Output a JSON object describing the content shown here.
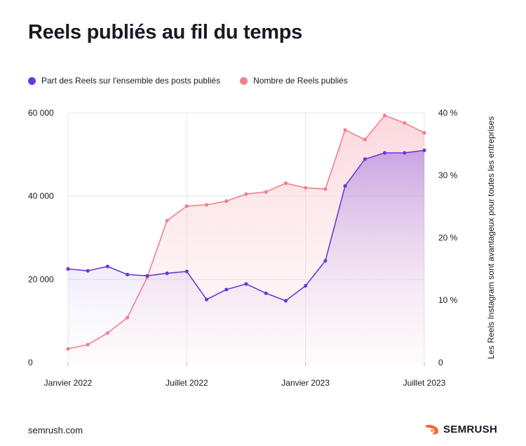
{
  "title": "Reels publiés au fil du temps",
  "footer": {
    "source": "semrush.com",
    "brand": "SEMRUSH"
  },
  "colors": {
    "purple": "#6a3ad6",
    "pink": "#f0808e",
    "grid": "#e6e6ea",
    "text": "#171a22"
  },
  "chart_data": {
    "type": "line",
    "title": "Reels publiés au fil du temps",
    "x_labels": [
      "Janvier 2022",
      "Juillet 2022",
      "Janvier 2023",
      "Juillet 2023"
    ],
    "x": [
      "2022-01",
      "2022-02",
      "2022-03",
      "2022-04",
      "2022-05",
      "2022-06",
      "2022-07",
      "2022-08",
      "2022-09",
      "2022-10",
      "2022-11",
      "2022-12",
      "2023-01",
      "2023-02",
      "2023-03",
      "2023-04",
      "2023-05",
      "2023-06",
      "2023-07"
    ],
    "left_axis": {
      "ticks": [
        "0",
        "20 000",
        "40 000",
        "60 000"
      ],
      "ylim": [
        0,
        60000
      ]
    },
    "right_axis": {
      "ticks": [
        "0",
        "10 %",
        "20 %",
        "30 %",
        "40 %"
      ],
      "ylim": [
        0,
        40
      ],
      "label": "Les Reels Instagram sont avantageux pour toutes les entreprises"
    },
    "series": [
      {
        "name": "Part des Reels sur l'ensemble des posts publiés",
        "axis": "right",
        "color": "#6a3ad6",
        "values": [
          15.0,
          14.7,
          15.4,
          14.1,
          13.9,
          14.3,
          14.6,
          10.1,
          11.7,
          12.6,
          11.1,
          9.9,
          12.3,
          16.3,
          28.3,
          32.6,
          33.6,
          33.6,
          34.0
        ]
      },
      {
        "name": "Nombre de Reels publiés",
        "axis": "left",
        "color": "#f0808e",
        "values": [
          3300,
          4300,
          7100,
          10800,
          20500,
          34100,
          37600,
          37900,
          38800,
          40500,
          41000,
          43100,
          42000,
          41700,
          55900,
          53600,
          59400,
          57600,
          55200
        ]
      }
    ],
    "grid": true,
    "legend_position": "top-left"
  }
}
